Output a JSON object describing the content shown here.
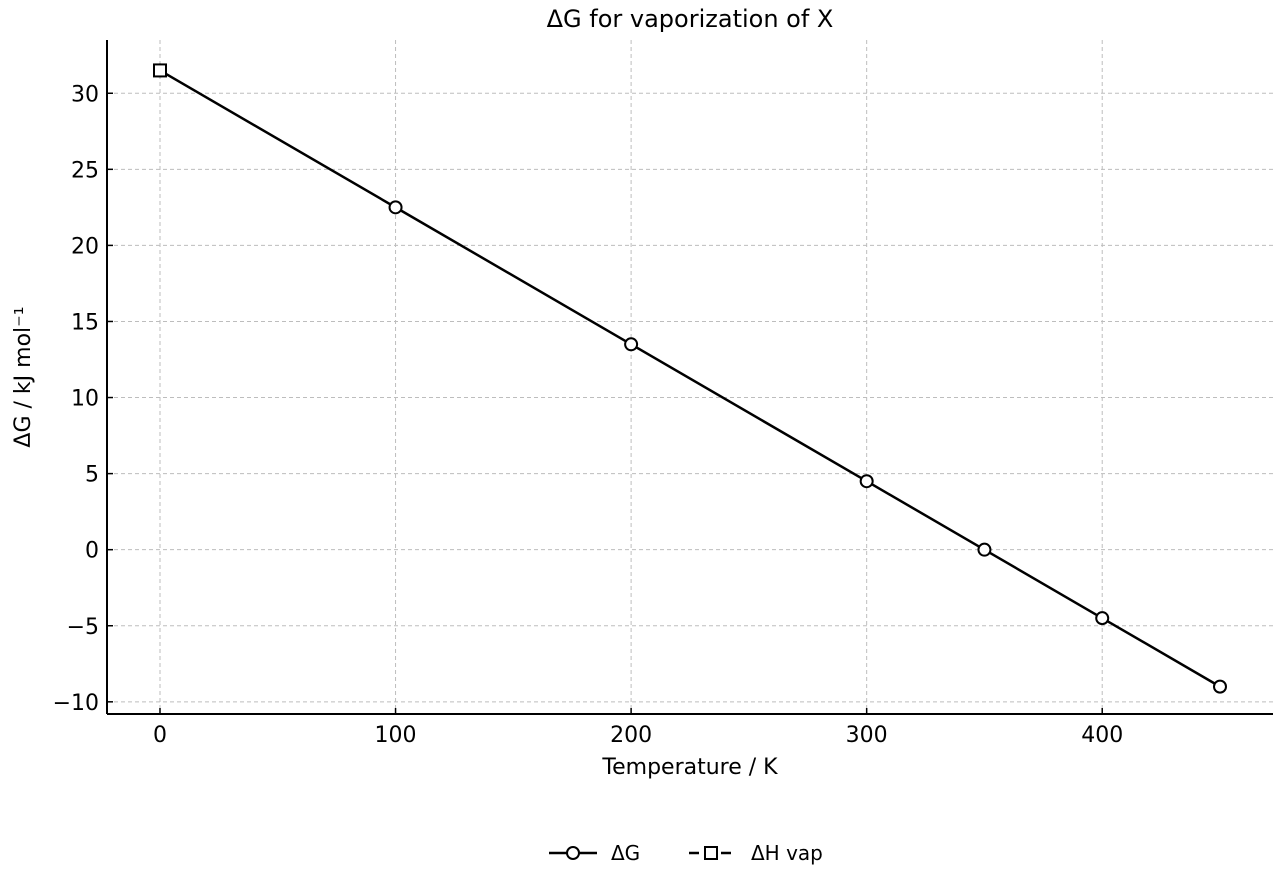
{
  "chart_data": {
    "type": "line",
    "title": "ΔG for vaporization of X",
    "xlabel": "Temperature / K",
    "ylabel": "ΔG / kJ mol⁻¹",
    "xlim": [
      -22.5,
      472.5
    ],
    "ylim": [
      -10.8,
      33.5
    ],
    "xticks": [
      0,
      100,
      200,
      300,
      400
    ],
    "xtick_labels": [
      "0",
      "100",
      "200",
      "300",
      "400"
    ],
    "yticks": [
      -10,
      -5,
      0,
      5,
      10,
      15,
      20,
      25,
      30
    ],
    "ytick_labels": [
      "−10",
      "−5",
      "0",
      "5",
      "10",
      "15",
      "20",
      "25",
      "30"
    ],
    "grid": true,
    "legend_position": "bottom-center",
    "series": [
      {
        "name": "ΔG",
        "marker": "circle",
        "line": "solid",
        "color": "#000000",
        "x": [
          0,
          100,
          200,
          300,
          350,
          400,
          450
        ],
        "y": [
          31.5,
          22.5,
          13.5,
          4.5,
          0.0,
          -4.5,
          -9.0
        ]
      },
      {
        "name": "ΔH vap",
        "marker": "square",
        "line": "dashed",
        "color": "#000000",
        "x": [
          0
        ],
        "y": [
          31.5
        ]
      }
    ]
  }
}
